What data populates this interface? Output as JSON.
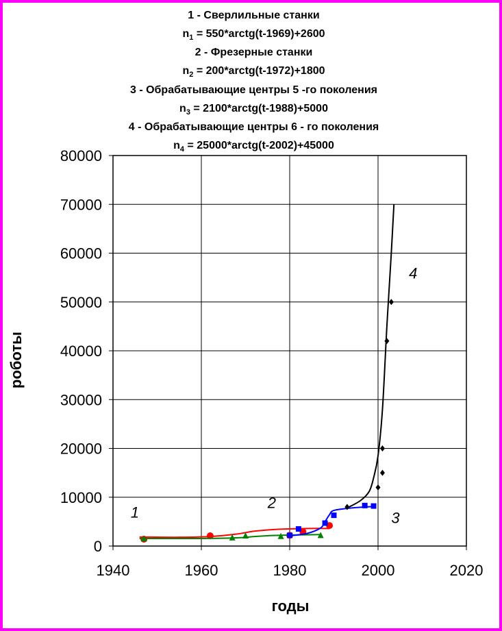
{
  "chart_data": {
    "type": "scatter",
    "title_lines": [
      {
        "pre": "1 - Сверлильные станки",
        "sub": "",
        "post": ""
      },
      {
        "pre": "n",
        "sub": "1",
        "post": " = 550*arctg(t-1969)+2600"
      },
      {
        "pre": "2 - Фрезерные станки",
        "sub": "",
        "post": ""
      },
      {
        "pre": "n",
        "sub": "2",
        "post": " = 200*arctg(t-1972)+1800"
      },
      {
        "pre": "3 - Обрабатывающие центры 5 -го поколения",
        "sub": "",
        "post": ""
      },
      {
        "pre": "n",
        "sub": "3",
        "post": " = 2100*arctg(t-1988)+5000"
      },
      {
        "pre": "4 - Обрабатывающие центры 6 - го поколения",
        "sub": "",
        "post": ""
      },
      {
        "pre": "n",
        "sub": "4",
        "post": " = 25000*arctg(t-2002)+45000"
      }
    ],
    "xlabel": "годы",
    "ylabel": "роботы",
    "xlim": [
      1940,
      2020
    ],
    "ylim": [
      0,
      80000
    ],
    "x_ticks": [
      "1940",
      "1960",
      "1980",
      "2000",
      "2020"
    ],
    "y_ticks": [
      "0",
      "10000",
      "20000",
      "30000",
      "40000",
      "50000",
      "60000",
      "70000",
      "80000"
    ],
    "grid": true,
    "series": [
      {
        "label": "1",
        "color": "#ff0000",
        "marker": "circle",
        "points": [
          [
            1947,
            1400
          ],
          [
            1962,
            2100
          ],
          [
            1980,
            2200
          ],
          [
            1983,
            2900
          ],
          [
            1989,
            4200
          ]
        ],
        "curve": [
          [
            1946,
            1850
          ],
          [
            1955,
            1800
          ],
          [
            1962,
            1950
          ],
          [
            1968,
            2450
          ],
          [
            1972,
            3050
          ],
          [
            1978,
            3450
          ],
          [
            1985,
            3600
          ],
          [
            1989,
            3600
          ]
        ],
        "label_pos": [
          1944,
          5800
        ]
      },
      {
        "label": "2",
        "color": "#008000",
        "marker": "triangle",
        "points": [
          [
            1947,
            1500
          ],
          [
            1967,
            1700
          ],
          [
            1970,
            2100
          ],
          [
            1978,
            2000
          ],
          [
            1987,
            2200
          ]
        ],
        "curve": [
          [
            1946,
            1550
          ],
          [
            1960,
            1550
          ],
          [
            1968,
            1680
          ],
          [
            1972,
            1950
          ],
          [
            1976,
            2150
          ],
          [
            1980,
            2250
          ],
          [
            1987,
            2350
          ]
        ],
        "label_pos": [
          1975,
          7800
        ]
      },
      {
        "label": "3",
        "color": "#0000ff",
        "marker": "square",
        "points": [
          [
            1980,
            2200
          ],
          [
            1982,
            3500
          ],
          [
            1988,
            4700
          ],
          [
            1990,
            6300
          ],
          [
            1997,
            8300
          ],
          [
            1999,
            8200
          ]
        ],
        "curve": [
          [
            1980,
            2100
          ],
          [
            1984,
            2600
          ],
          [
            1987,
            3700
          ],
          [
            1988,
            5000
          ],
          [
            1989,
            6400
          ],
          [
            1990,
            7300
          ],
          [
            1994,
            7800
          ],
          [
            1999,
            8100
          ]
        ],
        "label_pos": [
          2003,
          4700
        ]
      },
      {
        "label": "4",
        "color": "#000000",
        "marker": "diamond",
        "points": [
          [
            1993,
            8000
          ],
          [
            2000,
            12000
          ],
          [
            2001,
            15000
          ],
          [
            2001,
            20000
          ],
          [
            2002,
            42000
          ],
          [
            2003,
            50000
          ]
        ],
        "curve": [
          [
            1993,
            7800
          ],
          [
            1996,
            9300
          ],
          [
            1998,
            11200
          ],
          [
            1999,
            14000
          ],
          [
            2000,
            18500
          ],
          [
            2001,
            28000
          ],
          [
            2002,
            45000
          ],
          [
            2003,
            60000
          ],
          [
            2003.6,
            70000
          ]
        ],
        "label_pos": [
          2007,
          54800
        ]
      }
    ]
  }
}
